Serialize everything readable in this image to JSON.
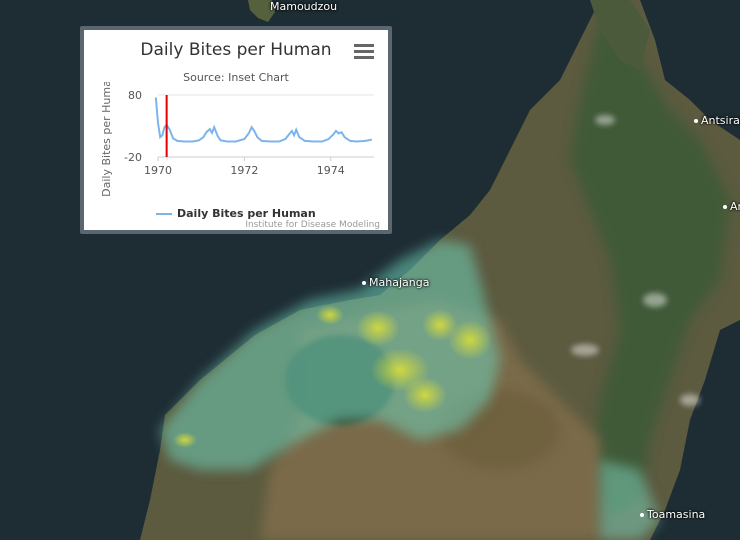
{
  "map": {
    "cities": [
      {
        "name": "Mamoudzou"
      },
      {
        "name": "Mahajanga"
      },
      {
        "name": "Antsirab"
      },
      {
        "name": "An"
      },
      {
        "name": "Toamasina"
      }
    ]
  },
  "inset": {
    "title": "Daily Bites per Human",
    "subtitle": "Source: Inset Chart",
    "menu_icon": "hamburger-menu-icon",
    "credit": "Institute for Disease Modeling",
    "legend_label": "Daily Bites per Human"
  },
  "chart_data": {
    "type": "line",
    "title": "Daily Bites per Human",
    "subtitle": "Source: Inset Chart",
    "ylabel": "Daily Bites per Human",
    "xlabel": "",
    "xlim": [
      1970,
      1975
    ],
    "ylim": [
      -20,
      80
    ],
    "y_ticks": [
      "80",
      "-20"
    ],
    "x_ticks": [
      "1970",
      "1972",
      "1974"
    ],
    "marker_x": 1970.2,
    "marker_color": "#e00000",
    "series": [
      {
        "name": "Daily Bites per Human",
        "color": "#7cb5ec",
        "points": [
          [
            1969.95,
            76
          ],
          [
            1970.0,
            35
          ],
          [
            1970.05,
            12
          ],
          [
            1970.1,
            15
          ],
          [
            1970.15,
            28
          ],
          [
            1970.2,
            32
          ],
          [
            1970.27,
            24
          ],
          [
            1970.35,
            10
          ],
          [
            1970.45,
            6
          ],
          [
            1970.6,
            5
          ],
          [
            1970.8,
            5
          ],
          [
            1970.95,
            7
          ],
          [
            1971.05,
            12
          ],
          [
            1971.12,
            20
          ],
          [
            1971.2,
            25
          ],
          [
            1971.25,
            19
          ],
          [
            1971.3,
            28
          ],
          [
            1971.38,
            14
          ],
          [
            1971.45,
            7
          ],
          [
            1971.6,
            5
          ],
          [
            1971.8,
            5
          ],
          [
            1972.0,
            9
          ],
          [
            1972.1,
            18
          ],
          [
            1972.17,
            28
          ],
          [
            1972.23,
            22
          ],
          [
            1972.3,
            12
          ],
          [
            1972.4,
            6
          ],
          [
            1972.6,
            5
          ],
          [
            1972.8,
            5
          ],
          [
            1972.95,
            9
          ],
          [
            1973.05,
            18
          ],
          [
            1973.1,
            22
          ],
          [
            1973.15,
            15
          ],
          [
            1973.2,
            24
          ],
          [
            1973.27,
            12
          ],
          [
            1973.4,
            6
          ],
          [
            1973.6,
            5
          ],
          [
            1973.8,
            5
          ],
          [
            1973.95,
            9
          ],
          [
            1974.05,
            16
          ],
          [
            1974.12,
            22
          ],
          [
            1974.18,
            18
          ],
          [
            1974.25,
            20
          ],
          [
            1974.32,
            12
          ],
          [
            1974.45,
            6
          ],
          [
            1974.6,
            5
          ],
          [
            1974.8,
            6
          ],
          [
            1974.95,
            8
          ]
        ]
      }
    ]
  }
}
